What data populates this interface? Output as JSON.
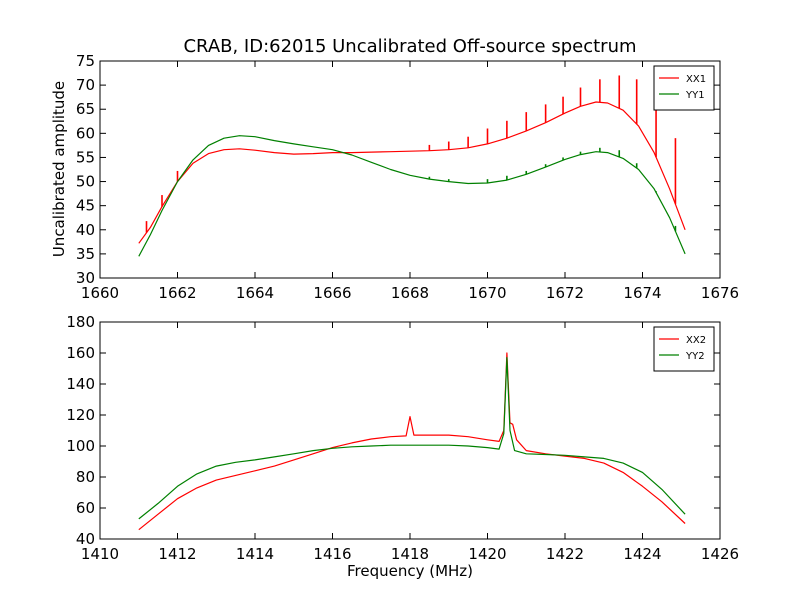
{
  "figure": {
    "title": "CRAB, ID:62015 Uncalibrated Off-source spectrum",
    "ylabel": "Uncalibrated amplitude",
    "xlabel": "Frequency (MHz)"
  },
  "chart_data": [
    {
      "type": "line",
      "title": "CRAB, ID:62015 Uncalibrated Off-source spectrum",
      "ylabel": "Uncalibrated amplitude",
      "xlim": [
        1660,
        1676
      ],
      "ylim": [
        30,
        75
      ],
      "xticks": [
        1660,
        1662,
        1664,
        1666,
        1668,
        1670,
        1672,
        1674,
        1676
      ],
      "yticks": [
        30,
        35,
        40,
        45,
        50,
        55,
        60,
        65,
        70,
        75
      ],
      "legend_position": "top-right",
      "series": [
        {
          "name": "XX1",
          "color": "#ff0000",
          "x": [
            1661.0,
            1661.3,
            1661.6,
            1662.0,
            1662.4,
            1662.8,
            1663.2,
            1663.6,
            1664.0,
            1664.5,
            1665.0,
            1665.5,
            1666.0,
            1666.5,
            1667.0,
            1667.5,
            1668.0,
            1668.5,
            1669.0,
            1669.5,
            1670.0,
            1670.5,
            1671.0,
            1671.5,
            1672.0,
            1672.4,
            1672.8,
            1673.1,
            1673.5,
            1673.9,
            1674.3,
            1674.7,
            1675.1
          ],
          "y": [
            37.2,
            40.5,
            44.8,
            50.0,
            53.8,
            55.8,
            56.6,
            56.8,
            56.5,
            56.0,
            55.7,
            55.8,
            56.0,
            56.0,
            56.1,
            56.2,
            56.3,
            56.4,
            56.6,
            57.0,
            57.8,
            59.0,
            60.5,
            62.2,
            64.2,
            65.6,
            66.5,
            66.3,
            64.8,
            61.5,
            56.0,
            48.5,
            40.0
          ],
          "spikes": [
            {
              "x": 1661.2,
              "y": 41.8
            },
            {
              "x": 1661.6,
              "y": 47.2
            },
            {
              "x": 1662.0,
              "y": 52.2
            },
            {
              "x": 1668.5,
              "y": 57.6
            },
            {
              "x": 1669.0,
              "y": 58.3
            },
            {
              "x": 1669.5,
              "y": 59.3
            },
            {
              "x": 1670.0,
              "y": 61.0
            },
            {
              "x": 1670.5,
              "y": 62.6
            },
            {
              "x": 1671.0,
              "y": 64.4
            },
            {
              "x": 1671.5,
              "y": 66.0
            },
            {
              "x": 1671.95,
              "y": 67.6
            },
            {
              "x": 1672.4,
              "y": 69.5
            },
            {
              "x": 1672.9,
              "y": 71.2
            },
            {
              "x": 1673.4,
              "y": 72.0
            },
            {
              "x": 1673.85,
              "y": 71.2
            },
            {
              "x": 1674.35,
              "y": 66.8
            },
            {
              "x": 1674.85,
              "y": 59.0
            }
          ]
        },
        {
          "name": "YY1",
          "color": "#008000",
          "x": [
            1661.0,
            1661.3,
            1661.6,
            1662.0,
            1662.4,
            1662.8,
            1663.2,
            1663.6,
            1664.0,
            1664.5,
            1665.0,
            1665.5,
            1666.0,
            1666.5,
            1667.0,
            1667.5,
            1668.0,
            1668.5,
            1669.0,
            1669.5,
            1670.0,
            1670.5,
            1671.0,
            1671.5,
            1672.0,
            1672.4,
            1672.8,
            1673.1,
            1673.5,
            1673.9,
            1674.3,
            1674.7,
            1675.1
          ],
          "y": [
            34.5,
            39.0,
            44.0,
            50.0,
            54.5,
            57.5,
            59.0,
            59.5,
            59.3,
            58.5,
            57.8,
            57.2,
            56.6,
            55.5,
            54.0,
            52.5,
            51.3,
            50.5,
            50.0,
            49.6,
            49.7,
            50.3,
            51.5,
            53.0,
            54.6,
            55.6,
            56.2,
            56.0,
            54.8,
            52.5,
            48.5,
            42.5,
            35.0
          ],
          "spikes": [
            {
              "x": 1668.5,
              "y": 51.0
            },
            {
              "x": 1669.0,
              "y": 50.5
            },
            {
              "x": 1670.0,
              "y": 50.5
            },
            {
              "x": 1670.5,
              "y": 51.2
            },
            {
              "x": 1671.0,
              "y": 52.2
            },
            {
              "x": 1671.5,
              "y": 53.6
            },
            {
              "x": 1671.95,
              "y": 55.0
            },
            {
              "x": 1672.4,
              "y": 56.2
            },
            {
              "x": 1672.9,
              "y": 57.0
            },
            {
              "x": 1673.4,
              "y": 56.5
            },
            {
              "x": 1673.85,
              "y": 53.8
            },
            {
              "x": 1674.35,
              "y": 48.0
            },
            {
              "x": 1674.85,
              "y": 40.8
            }
          ]
        }
      ]
    },
    {
      "type": "line",
      "xlabel": "Frequency (MHz)",
      "xlim": [
        1410,
        1426
      ],
      "ylim": [
        40,
        180
      ],
      "xticks": [
        1410,
        1412,
        1414,
        1416,
        1418,
        1420,
        1422,
        1424,
        1426
      ],
      "yticks": [
        40,
        60,
        80,
        100,
        120,
        140,
        160,
        180
      ],
      "legend_position": "top-right",
      "series": [
        {
          "name": "XX2",
          "color": "#ff0000",
          "x": [
            1411.0,
            1411.5,
            1412.0,
            1412.5,
            1413.0,
            1413.5,
            1414.0,
            1414.5,
            1415.0,
            1415.5,
            1416.0,
            1416.5,
            1417.0,
            1417.5,
            1417.9,
            1418.0,
            1418.1,
            1418.5,
            1419.0,
            1419.5,
            1420.0,
            1420.3,
            1420.42,
            1420.5,
            1420.58,
            1420.65,
            1420.75,
            1421.0,
            1421.5,
            1422.0,
            1422.5,
            1423.0,
            1423.5,
            1424.0,
            1424.5,
            1425.1
          ],
          "y": [
            46,
            56,
            66,
            73,
            78,
            81,
            84,
            87,
            91,
            95,
            99,
            102,
            104.5,
            106,
            106.5,
            119,
            107,
            107,
            107,
            106,
            104,
            103,
            110,
            160,
            115,
            114,
            104,
            97,
            95,
            93.5,
            92,
            89,
            83,
            74,
            64,
            50
          ]
        },
        {
          "name": "YY2",
          "color": "#008000",
          "x": [
            1411.0,
            1411.5,
            1412.0,
            1412.5,
            1413.0,
            1413.5,
            1414.0,
            1414.5,
            1415.0,
            1415.5,
            1416.0,
            1416.5,
            1417.0,
            1417.5,
            1418.0,
            1418.5,
            1419.0,
            1419.5,
            1420.0,
            1420.3,
            1420.42,
            1420.5,
            1420.58,
            1420.7,
            1421.0,
            1421.5,
            1422.0,
            1422.5,
            1423.0,
            1423.5,
            1424.0,
            1424.5,
            1425.1
          ],
          "y": [
            53,
            63,
            74,
            82,
            87,
            89.5,
            91,
            93,
            95,
            97,
            98.5,
            99.5,
            100,
            100.5,
            100.5,
            100.5,
            100.5,
            100,
            99,
            98,
            108,
            157,
            110,
            97,
            95,
            94.5,
            94,
            93,
            92,
            89,
            83,
            72,
            56
          ]
        }
      ]
    }
  ]
}
